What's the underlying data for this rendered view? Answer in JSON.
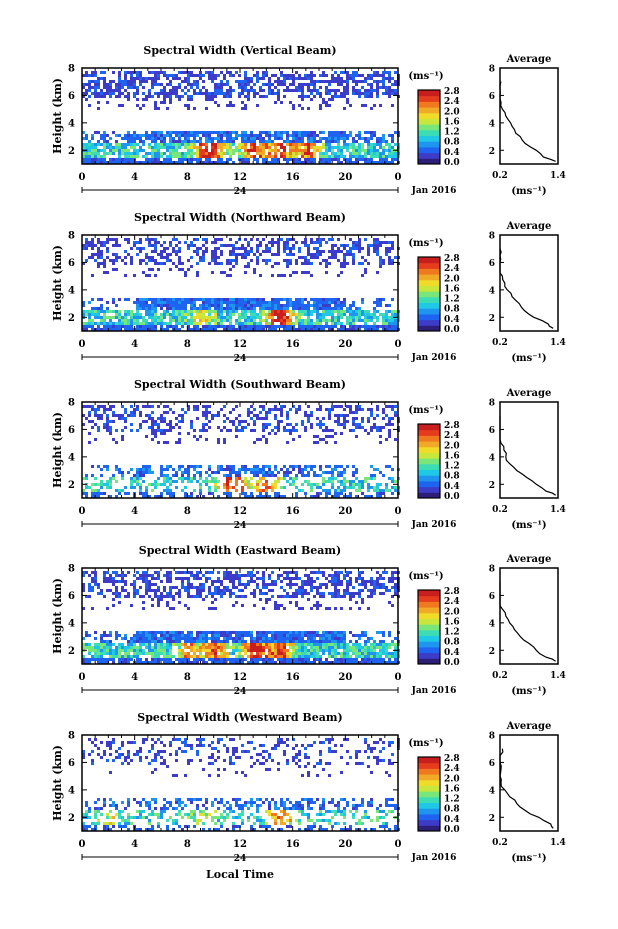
{
  "figure": {
    "date_label": "Jan 2016",
    "day_label": "24",
    "bottom_xlabel": "Local Time",
    "units_label": "(ms⁻¹)",
    "avg_title": "Average",
    "avg_xlabel": "(ms⁻¹)"
  },
  "colormap": [
    "#2d1e78",
    "#3c3cc8",
    "#1e64f0",
    "#1e96f0",
    "#1ec8e6",
    "#3cdcb4",
    "#78e678",
    "#c8e63c",
    "#f0dc28",
    "#f0aa28",
    "#f0781e",
    "#e63c1e",
    "#c81e1e"
  ],
  "chart_data": [
    {
      "type": "heatmap",
      "title": "Spectral Width (Vertical Beam)",
      "ylabel": "Height (km)",
      "x_ticks": [
        "0",
        "4",
        "8",
        "12",
        "16",
        "20",
        "0"
      ],
      "y_ticks": [
        "2",
        "4",
        "6",
        "8"
      ],
      "xlim": [
        0,
        24
      ],
      "ylim": [
        1,
        8
      ],
      "colorbar": {
        "ticks": [
          "0.0",
          "0.4",
          "0.8",
          "1.2",
          "1.6",
          "2.0",
          "2.4",
          "2.8"
        ],
        "range": [
          0,
          2.8
        ]
      },
      "average_profile": {
        "x_ticks": [
          "0.2",
          "1.4"
        ],
        "xlim": [
          0.2,
          1.4
        ],
        "ylim": [
          1,
          8
        ],
        "height_km": [
          1.2,
          1.5,
          2.0,
          2.5,
          3.0,
          3.5,
          4.0,
          4.5,
          5.0,
          5.5,
          6.0,
          6.5,
          7.0
        ],
        "width_ms": [
          1.35,
          1.1,
          0.95,
          0.72,
          0.62,
          0.5,
          0.42,
          0.32,
          0.25,
          0.22,
          0.18,
          0.16,
          0.22
        ]
      }
    },
    {
      "type": "heatmap",
      "title": "Spectral Width (Northward Beam)",
      "ylabel": "Height (km)",
      "x_ticks": [
        "0",
        "4",
        "8",
        "12",
        "16",
        "20",
        "0"
      ],
      "y_ticks": [
        "2",
        "4",
        "6",
        "8"
      ],
      "xlim": [
        0,
        24
      ],
      "ylim": [
        1,
        8
      ],
      "colorbar": {
        "ticks": [
          "0.0",
          "0.4",
          "0.8",
          "1.2",
          "1.6",
          "2.0",
          "2.4",
          "2.8"
        ],
        "range": [
          0,
          2.8
        ]
      },
      "average_profile": {
        "x_ticks": [
          "0.2",
          "1.4"
        ],
        "xlim": [
          0.2,
          1.4
        ],
        "ylim": [
          1,
          8
        ],
        "height_km": [
          1.2,
          1.5,
          2.0,
          2.5,
          3.0,
          3.5,
          4.0,
          4.5,
          5.0,
          5.5,
          6.0,
          6.5,
          7.0
        ],
        "width_ms": [
          1.3,
          1.2,
          0.9,
          0.7,
          0.6,
          0.45,
          0.35,
          0.3,
          0.25,
          0.2,
          0.16,
          0.15,
          0.2
        ]
      }
    },
    {
      "type": "heatmap",
      "title": "Spectral Width (Southward Beam)",
      "ylabel": "Height (km)",
      "x_ticks": [
        "0",
        "4",
        "8",
        "12",
        "16",
        "20",
        "0"
      ],
      "y_ticks": [
        "2",
        "4",
        "6",
        "8"
      ],
      "xlim": [
        0,
        24
      ],
      "ylim": [
        1,
        8
      ],
      "colorbar": {
        "ticks": [
          "0.0",
          "0.4",
          "0.8",
          "1.2",
          "1.6",
          "2.0",
          "2.4",
          "2.8"
        ],
        "range": [
          0,
          2.8
        ]
      },
      "average_profile": {
        "x_ticks": [
          "0.2",
          "1.4"
        ],
        "xlim": [
          0.2,
          1.4
        ],
        "ylim": [
          1,
          8
        ],
        "height_km": [
          1.2,
          1.5,
          2.0,
          2.5,
          3.0,
          3.5,
          4.0,
          4.5,
          5.0,
          5.5,
          6.0,
          6.5,
          7.0
        ],
        "width_ms": [
          1.35,
          1.15,
          0.95,
          0.75,
          0.55,
          0.4,
          0.32,
          0.28,
          0.22,
          0.18,
          0.15,
          0.14,
          0.2
        ]
      }
    },
    {
      "type": "heatmap",
      "title": "Spectral Width (Eastward Beam)",
      "ylabel": "Height (km)",
      "x_ticks": [
        "0",
        "4",
        "8",
        "12",
        "16",
        "20",
        "0"
      ],
      "y_ticks": [
        "2",
        "4",
        "6",
        "8"
      ],
      "xlim": [
        0,
        24
      ],
      "ylim": [
        1,
        8
      ],
      "colorbar": {
        "ticks": [
          "0.0",
          "0.4",
          "0.8",
          "1.2",
          "1.6",
          "2.0",
          "2.4",
          "2.8"
        ],
        "range": [
          0,
          2.8
        ]
      },
      "average_profile": {
        "x_ticks": [
          "0.2",
          "1.4"
        ],
        "xlim": [
          0.2,
          1.4
        ],
        "ylim": [
          1,
          8
        ],
        "height_km": [
          1.2,
          1.5,
          2.0,
          2.5,
          3.0,
          3.5,
          4.0,
          4.5,
          5.0,
          5.5,
          6.0,
          6.5,
          7.0
        ],
        "width_ms": [
          1.35,
          1.15,
          0.95,
          0.8,
          0.62,
          0.5,
          0.4,
          0.32,
          0.25,
          0.2,
          0.17,
          0.15,
          0.2
        ]
      }
    },
    {
      "type": "heatmap",
      "title": "Spectral Width (Westward Beam)",
      "ylabel": "Height (km)",
      "x_ticks": [
        "0",
        "4",
        "8",
        "12",
        "16",
        "20",
        "0"
      ],
      "y_ticks": [
        "2",
        "4",
        "6",
        "8"
      ],
      "xlim": [
        0,
        24
      ],
      "ylim": [
        1,
        8
      ],
      "colorbar": {
        "ticks": [
          "0.0",
          "0.4",
          "0.8",
          "1.2",
          "1.6",
          "2.0",
          "2.4",
          "2.8"
        ],
        "range": [
          0,
          2.8
        ]
      },
      "average_profile": {
        "x_ticks": [
          "0.2",
          "1.4"
        ],
        "xlim": [
          0.2,
          1.4
        ],
        "ylim": [
          1,
          8
        ],
        "height_km": [
          1.2,
          1.5,
          2.0,
          2.5,
          3.0,
          3.5,
          4.0,
          4.5,
          5.0,
          5.5,
          6.0,
          6.5,
          7.0
        ],
        "width_ms": [
          1.3,
          1.25,
          1.0,
          0.72,
          0.55,
          0.4,
          0.3,
          0.22,
          0.2,
          0.22,
          0.18,
          0.2,
          0.25
        ]
      }
    }
  ]
}
